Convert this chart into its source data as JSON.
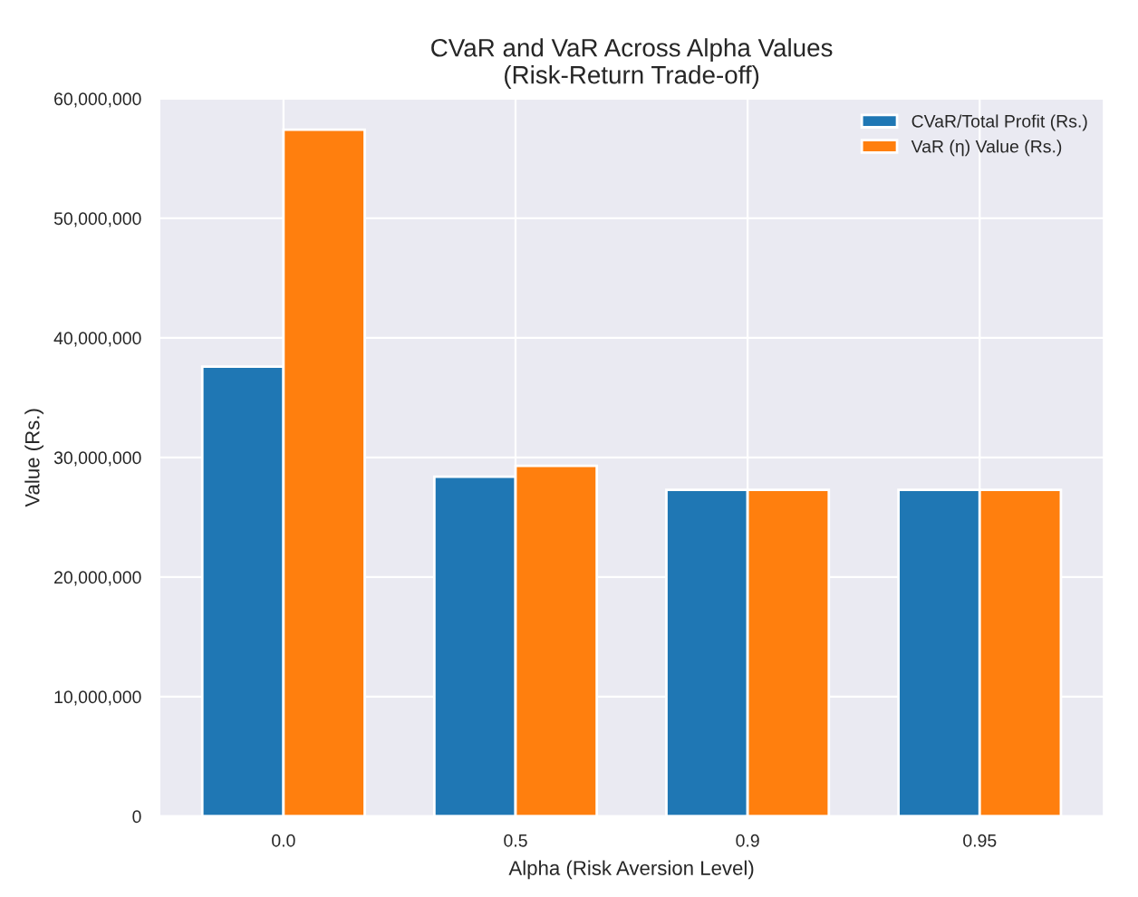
{
  "chart_data": {
    "type": "bar",
    "title": "CVaR and VaR Across Alpha Values\n(Risk-Return Trade-off)",
    "xlabel": "Alpha (Risk Aversion Level)",
    "ylabel": "Value (Rs.)",
    "categories": [
      "0.0",
      "0.5",
      "0.9",
      "0.95"
    ],
    "series": [
      {
        "name": "CVaR/Total Profit (Rs.)",
        "color": "#1f77b4",
        "values": [
          37600000,
          28400000,
          27300000,
          27300000
        ]
      },
      {
        "name": "VaR (η) Value (Rs.)",
        "color": "#ff7f0e",
        "values": [
          57400000,
          29300000,
          27300000,
          27300000
        ]
      }
    ],
    "ylim": [
      0,
      60000000
    ],
    "yticks": [
      {
        "value": 0,
        "label": "0"
      },
      {
        "value": 10000000,
        "label": "10,000,000"
      },
      {
        "value": 20000000,
        "label": "20,000,000"
      },
      {
        "value": 30000000,
        "label": "30,000,000"
      },
      {
        "value": 40000000,
        "label": "40,000,000"
      },
      {
        "value": 50000000,
        "label": "50,000,000"
      },
      {
        "value": 60000000,
        "label": "60,000,000"
      }
    ],
    "grid": true,
    "legend": "top right"
  }
}
